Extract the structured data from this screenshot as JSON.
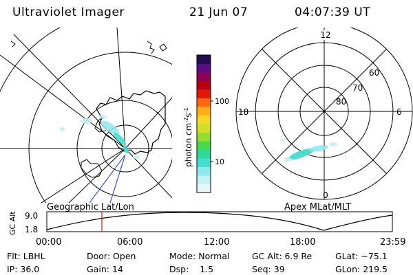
{
  "header": {
    "instrument": "Ultraviolet Imager",
    "date": "21 Jun 07",
    "time": "04:07:39 UT"
  },
  "left_map": {
    "caption": "Geographic Lat/Lon"
  },
  "right_map": {
    "caption": "Apex MLat/MLT",
    "mlt_labels": {
      "top": "12",
      "left": "18",
      "right": "6",
      "bottom": "0"
    },
    "lat_labels": [
      "60",
      "70",
      "80"
    ]
  },
  "colorbar": {
    "unit_main": "photon cm",
    "unit_exp1": "-2",
    "unit_mid": "s",
    "unit_exp2": "-1",
    "ticks": [
      "100",
      "10"
    ],
    "colors": [
      "#e8f8fa",
      "#c6f0f3",
      "#8ee8ec",
      "#44ddd0",
      "#2fd79a",
      "#47d84c",
      "#94dd31",
      "#d2df2a",
      "#f4d826",
      "#ffaf1c",
      "#ff6a10",
      "#e11808",
      "#b50012",
      "#8e0050",
      "#5a0e84",
      "#220c52"
    ]
  },
  "alt_plot": {
    "ylabel": "GC Alt",
    "yticks": [
      "9.0",
      "1.8"
    ],
    "xticks": [
      "00:00",
      "06:00",
      "12:00",
      "18:00",
      "23:59"
    ]
  },
  "footer": {
    "filter_label": "Flt:",
    "filter_value": "LBHL",
    "ip_label": "IP:",
    "ip_value": "36.0",
    "door_label": "Door:",
    "door_value": "Open",
    "gain_label": "Gain:",
    "gain_value": "14",
    "mode_label": "Mode:",
    "mode_value": "Normal",
    "dsp_label": "Dsp:",
    "dsp_value": "1.5",
    "gcalt_label": "GC Alt:",
    "gcalt_value": "6.9 Re",
    "seq_label": "Seq:",
    "seq_value": "39",
    "glat_label": "GLat:",
    "glat_value": "−75.1",
    "glon_label": "GLon:",
    "glon_value": "219.5"
  }
}
